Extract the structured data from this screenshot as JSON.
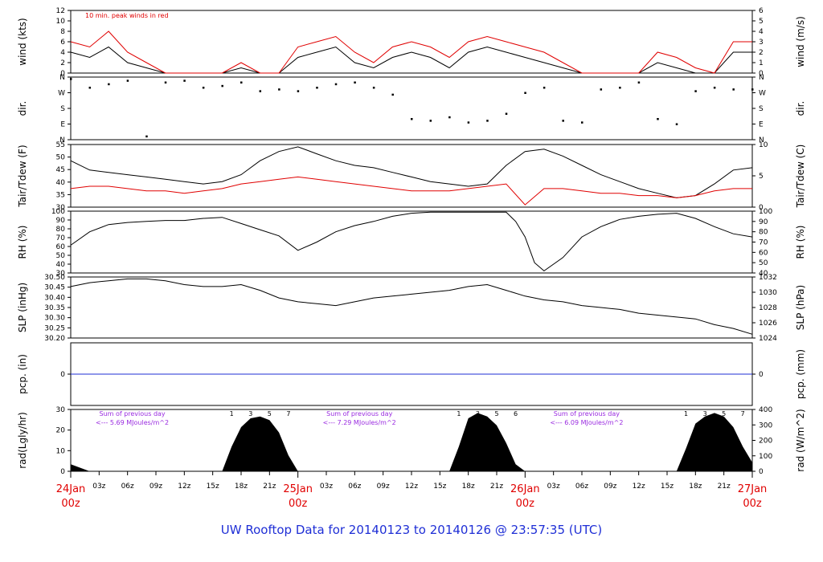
{
  "title": "UW Rooftop Data for 20140123  to  20140126 @ 23:57:35  (UTC)",
  "chart_data": [
    {
      "type": "line",
      "panel": "wind",
      "ylabel_left": "wind (kts)",
      "ylabel_right": "wind (m/s)",
      "ylim": [
        0,
        12
      ],
      "ylim_right": [
        0,
        6
      ],
      "yticks_left": [
        "0",
        "2",
        "4",
        "6",
        "8",
        "10",
        "12"
      ],
      "yticks_right": [
        "0",
        "1",
        "2",
        "3",
        "4",
        "5",
        "6"
      ],
      "annotation": "10 min. peak winds in red",
      "series": [
        {
          "role": "speed",
          "color": "#000000",
          "x": [
            0,
            2,
            4,
            6,
            8,
            10,
            12,
            14,
            16,
            18,
            20,
            22,
            24,
            26,
            28,
            30,
            32,
            34,
            36,
            38,
            40,
            42,
            44,
            46,
            48,
            50,
            52,
            54,
            56,
            58,
            60,
            62,
            64,
            66,
            68,
            70,
            72
          ],
          "values": [
            4,
            3,
            5,
            2,
            1,
            0,
            0,
            0,
            0,
            1,
            0,
            0,
            3,
            4,
            5,
            2,
            1,
            3,
            4,
            3,
            1,
            4,
            5,
            4,
            3,
            2,
            1,
            0,
            0,
            0,
            0,
            2,
            1,
            0,
            0,
            4,
            4
          ]
        },
        {
          "role": "peak",
          "color": "#e00000",
          "x": [
            0,
            2,
            4,
            6,
            8,
            10,
            12,
            14,
            16,
            18,
            20,
            22,
            24,
            26,
            28,
            30,
            32,
            34,
            36,
            38,
            40,
            42,
            44,
            46,
            48,
            50,
            52,
            54,
            56,
            58,
            60,
            62,
            64,
            66,
            68,
            70,
            72
          ],
          "values": [
            6,
            5,
            8,
            4,
            2,
            0,
            0,
            0,
            0,
            2,
            0,
            0,
            5,
            6,
            7,
            4,
            2,
            5,
            6,
            5,
            3,
            6,
            7,
            6,
            5,
            4,
            2,
            0,
            0,
            0,
            0,
            4,
            3,
            1,
            0,
            6,
            6
          ]
        }
      ]
    },
    {
      "type": "scatter",
      "panel": "dir",
      "ylabel": "dir.",
      "yticks": [
        "N",
        "E",
        "S",
        "W",
        "N"
      ],
      "yticks_right": [
        "N",
        "E",
        "S",
        "W",
        "N"
      ],
      "series": [
        {
          "name": "",
          "color": "#000000",
          "x": [
            0,
            2,
            4,
            6,
            8,
            10,
            12,
            14,
            16,
            18,
            20,
            22,
            24,
            26,
            28,
            30,
            32,
            34,
            36,
            38,
            40,
            42,
            44,
            46,
            48,
            50,
            52,
            54,
            56,
            58,
            60,
            62,
            64,
            66,
            68,
            70,
            72
          ],
          "values": [
            350,
            300,
            320,
            340,
            20,
            330,
            340,
            300,
            310,
            330,
            280,
            290,
            280,
            300,
            320,
            330,
            300,
            260,
            120,
            110,
            130,
            100,
            110,
            150,
            270,
            300,
            110,
            100,
            290,
            300,
            330,
            120,
            90,
            280,
            300,
            290,
            290
          ]
        }
      ]
    },
    {
      "type": "line",
      "panel": "temp",
      "ylabel_left": "Tair/Tdew (F)",
      "ylabel_right": "Tair/Tdew (C)",
      "ylim": [
        30,
        57
      ],
      "yticks_left": [
        "30",
        "35",
        "40",
        "45",
        "50",
        "55"
      ],
      "yticks_right": [
        "0",
        "5",
        "10"
      ],
      "series": [
        {
          "role": "Tair",
          "color": "#000000",
          "x": [
            0,
            2,
            4,
            6,
            8,
            10,
            12,
            14,
            16,
            18,
            20,
            22,
            24,
            26,
            28,
            30,
            32,
            34,
            36,
            38,
            40,
            42,
            44,
            46,
            48,
            50,
            52,
            54,
            56,
            58,
            60,
            62,
            64,
            66,
            68,
            70,
            72
          ],
          "values": [
            50,
            46,
            45,
            44,
            43,
            42,
            41,
            40,
            41,
            44,
            50,
            54,
            56,
            53,
            50,
            48,
            47,
            45,
            43,
            41,
            40,
            39,
            40,
            48,
            54,
            55,
            52,
            48,
            44,
            41,
            38,
            36,
            34,
            35,
            40,
            46,
            47
          ]
        },
        {
          "role": "Tdew",
          "color": "#e00000",
          "x": [
            0,
            2,
            4,
            6,
            8,
            10,
            12,
            14,
            16,
            18,
            20,
            22,
            24,
            26,
            28,
            30,
            32,
            34,
            36,
            38,
            40,
            42,
            44,
            46,
            48,
            50,
            52,
            54,
            56,
            58,
            60,
            62,
            64,
            66,
            68,
            70,
            72
          ],
          "values": [
            38,
            39,
            39,
            38,
            37,
            37,
            36,
            37,
            38,
            40,
            41,
            42,
            43,
            42,
            41,
            40,
            39,
            38,
            37,
            37,
            37,
            38,
            39,
            40,
            31,
            38,
            38,
            37,
            36,
            36,
            35,
            35,
            34,
            35,
            37,
            38,
            38
          ]
        }
      ]
    },
    {
      "type": "line",
      "panel": "rh",
      "ylabel_left": "RH (%)",
      "ylabel_right": "RH (%)",
      "ylim": [
        40,
        100
      ],
      "yticks_left": [
        "30",
        "40",
        "50",
        "60",
        "70",
        "80",
        "90",
        "100"
      ],
      "yticks_right": [
        "40",
        "50",
        "60",
        "70",
        "80",
        "90",
        "100"
      ],
      "series": [
        {
          "name": "",
          "color": "#000000",
          "x": [
            0,
            2,
            4,
            6,
            8,
            10,
            12,
            14,
            16,
            18,
            20,
            22,
            24,
            26,
            28,
            30,
            32,
            34,
            36,
            38,
            40,
            42,
            44,
            46,
            47,
            48,
            49,
            50,
            52,
            54,
            56,
            58,
            60,
            62,
            64,
            66,
            68,
            70,
            72
          ],
          "values": [
            67,
            80,
            87,
            89,
            90,
            91,
            91,
            93,
            94,
            88,
            82,
            76,
            62,
            70,
            80,
            86,
            90,
            95,
            98,
            99,
            99,
            99,
            99,
            99,
            90,
            75,
            50,
            42,
            55,
            75,
            85,
            92,
            95,
            97,
            98,
            93,
            85,
            78,
            75
          ]
        }
      ]
    },
    {
      "type": "line",
      "panel": "slp",
      "ylabel_left": "SLP (inHg)",
      "ylabel_right": "SLP (hPa)",
      "ylim": [
        30.18,
        30.5
      ],
      "yticks_left": [
        "30.20",
        "30.25",
        "30.30",
        "30.35",
        "30.40",
        "30.45",
        "30.50"
      ],
      "yticks_right": [
        "1024",
        "1026",
        "1028",
        "1030",
        "1032"
      ],
      "series": [
        {
          "name": "",
          "color": "#000000",
          "x": [
            0,
            2,
            4,
            6,
            8,
            10,
            12,
            14,
            16,
            18,
            20,
            22,
            24,
            26,
            28,
            30,
            32,
            34,
            36,
            38,
            40,
            42,
            44,
            46,
            48,
            50,
            52,
            54,
            56,
            58,
            60,
            62,
            64,
            66,
            68,
            70,
            72
          ],
          "values": [
            30.45,
            30.47,
            30.48,
            30.49,
            30.49,
            30.48,
            30.46,
            30.45,
            30.45,
            30.46,
            30.43,
            30.39,
            30.37,
            30.36,
            30.35,
            30.37,
            30.39,
            30.4,
            30.41,
            30.42,
            30.43,
            30.45,
            30.46,
            30.43,
            30.4,
            30.38,
            30.37,
            30.35,
            30.34,
            30.33,
            30.31,
            30.3,
            30.29,
            30.28,
            30.25,
            30.23,
            30.2
          ]
        }
      ]
    },
    {
      "type": "line",
      "panel": "pcp",
      "ylabel_left": "pcp. (in)",
      "ylabel_right": "pcp. (mm)",
      "yticks_left": [
        "0"
      ],
      "yticks_right": [
        "0"
      ],
      "series": [
        {
          "name": "",
          "color": "#1f2fd6",
          "x": [
            0,
            72
          ],
          "values": [
            0,
            0
          ]
        }
      ]
    },
    {
      "type": "area",
      "panel": "rad",
      "ylabel_left": "rad(Lgly/hr)",
      "ylabel_right": "rad (W/m^2)",
      "ylim": [
        0,
        35
      ],
      "yticks_left": [
        "0",
        "10",
        "20",
        "30"
      ],
      "yticks_right": [
        "0",
        "100",
        "200",
        "300",
        "400"
      ],
      "hour_labels": [
        "1",
        "3",
        "5",
        "7",
        "6"
      ],
      "annotations": [
        {
          "line1": "Sum of previous day",
          "line2": "<--- 5.69 MJoules/m^2"
        },
        {
          "line1": "Sum of previous day",
          "line2": "<--- 7.29 MJoules/m^2"
        },
        {
          "line1": "Sum of previous day",
          "line2": "<--- 6.09 MJoules/m^2"
        }
      ],
      "series": [
        {
          "name": "",
          "color": "#000000",
          "x": [
            0,
            1,
            2,
            16,
            17,
            18,
            19,
            20,
            21,
            22,
            23,
            24,
            40,
            41,
            42,
            43,
            44,
            45,
            46,
            47,
            48,
            64,
            65,
            66,
            67,
            68,
            69,
            70,
            71,
            72
          ],
          "values": [
            4,
            2,
            0,
            0,
            14,
            25,
            30,
            31,
            29,
            22,
            9,
            0,
            0,
            14,
            30,
            33,
            31,
            26,
            16,
            4,
            0,
            0,
            13,
            27,
            31,
            33,
            31,
            25,
            14,
            5
          ]
        }
      ]
    }
  ],
  "xaxis": {
    "hour_ticks": [
      "03z",
      "06z",
      "09z",
      "12z",
      "15z",
      "18z",
      "21z"
    ],
    "days": [
      {
        "date": "24Jan",
        "time": "00z"
      },
      {
        "date": "25Jan",
        "time": "00z"
      },
      {
        "date": "26Jan",
        "time": "00z"
      },
      {
        "date": "27Jan",
        "time": "00z"
      }
    ]
  }
}
